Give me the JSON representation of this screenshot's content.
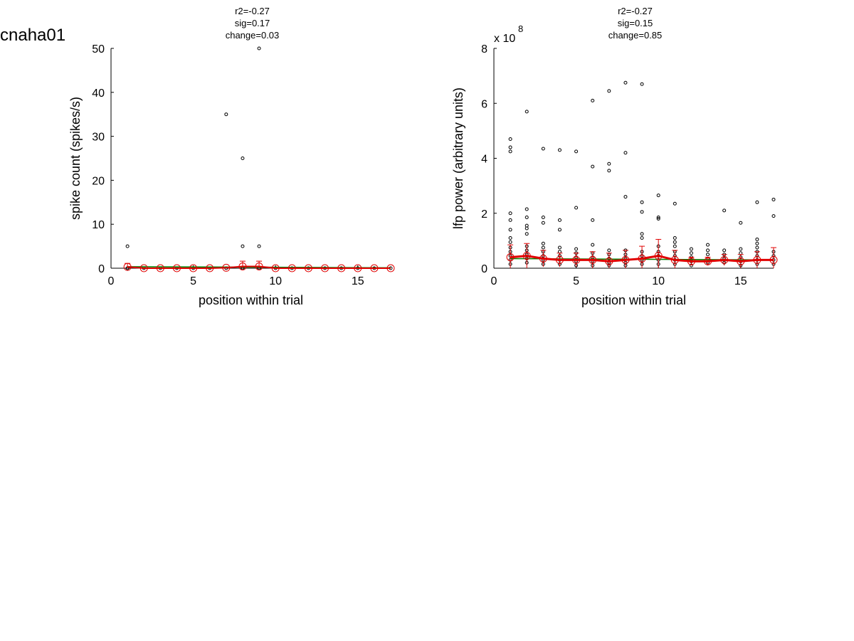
{
  "figure_title": "cnaha01",
  "chart_data": [
    {
      "type": "scatter",
      "stats": [
        "r2=-0.27",
        "sig=0.17",
        "change=0.03"
      ],
      "xlabel": "position within trial",
      "ylabel": "spike count (spikes/s)",
      "xlim": [
        0,
        17
      ],
      "ylim": [
        0,
        50
      ],
      "xticks": [
        "0",
        "5",
        "10",
        "15"
      ],
      "yticks": [
        "0",
        "10",
        "20",
        "30",
        "40",
        "50"
      ],
      "exponent_label": "",
      "exponent_power": "",
      "grid": false,
      "colors": {
        "points": "#000000",
        "fit": "#e00000",
        "trend": "#008000",
        "errbar": "#e00000"
      },
      "points": [
        [
          1,
          0
        ],
        [
          1,
          0
        ],
        [
          1,
          5
        ],
        [
          2,
          0
        ],
        [
          3,
          0
        ],
        [
          4,
          0
        ],
        [
          5,
          0
        ],
        [
          6,
          0
        ],
        [
          7,
          0
        ],
        [
          7,
          35
        ],
        [
          8,
          0
        ],
        [
          8,
          0
        ],
        [
          8,
          5
        ],
        [
          8,
          25
        ],
        [
          9,
          0
        ],
        [
          9,
          0
        ],
        [
          9,
          5
        ],
        [
          9,
          50
        ],
        [
          10,
          0
        ],
        [
          11,
          0
        ],
        [
          12,
          0
        ],
        [
          13,
          0
        ],
        [
          14,
          0
        ],
        [
          15,
          0
        ],
        [
          16,
          0
        ],
        [
          17,
          0
        ]
      ],
      "mean": {
        "x": [
          1,
          2,
          3,
          4,
          5,
          6,
          7,
          8,
          9,
          10,
          11,
          12,
          13,
          14,
          15,
          16,
          17
        ],
        "y": [
          0.3,
          0,
          0,
          0,
          0,
          0,
          0.1,
          0.4,
          0.4,
          0,
          0,
          0,
          0,
          0,
          0,
          0,
          0
        ],
        "err": [
          0.8,
          0,
          0,
          0,
          0,
          0,
          0,
          1.2,
          1.2,
          0,
          0,
          0,
          0,
          0,
          0,
          0,
          0
        ]
      },
      "fit_line": {
        "x": [
          1,
          17
        ],
        "y": [
          0.35,
          0.1
        ]
      }
    },
    {
      "type": "scatter",
      "stats": [
        "r2=-0.27",
        "sig=0.15",
        "change=0.85"
      ],
      "xlabel": "position within trial",
      "ylabel": "lfp power (arbitrary units)",
      "xlim": [
        0,
        17
      ],
      "ylim": [
        0,
        8
      ],
      "xticks": [
        "0",
        "5",
        "10",
        "15"
      ],
      "yticks": [
        "0",
        "2",
        "4",
        "6",
        "8"
      ],
      "exponent_label": "x 10",
      "exponent_power": "8",
      "grid": false,
      "colors": {
        "points": "#000000",
        "fit": "#e00000",
        "trend": "#008000",
        "errbar": "#e00000"
      },
      "points": [
        [
          1,
          4.7
        ],
        [
          1,
          4.4
        ],
        [
          1,
          4.25
        ],
        [
          1,
          2.0
        ],
        [
          1,
          1.75
        ],
        [
          1,
          1.4
        ],
        [
          1,
          1.1
        ],
        [
          1,
          0.95
        ],
        [
          1,
          0.75
        ],
        [
          1,
          0.6
        ],
        [
          1,
          0.45
        ],
        [
          1,
          0.3
        ],
        [
          1,
          0.15
        ],
        [
          2,
          5.7
        ],
        [
          2,
          2.15
        ],
        [
          2,
          1.85
        ],
        [
          2,
          1.55
        ],
        [
          2,
          1.45
        ],
        [
          2,
          1.25
        ],
        [
          2,
          0.8
        ],
        [
          2,
          0.65
        ],
        [
          2,
          0.5
        ],
        [
          2,
          0.35
        ],
        [
          2,
          0.2
        ],
        [
          3,
          4.35
        ],
        [
          3,
          1.85
        ],
        [
          3,
          1.65
        ],
        [
          3,
          0.9
        ],
        [
          3,
          0.75
        ],
        [
          3,
          0.6
        ],
        [
          3,
          0.45
        ],
        [
          3,
          0.3
        ],
        [
          3,
          0.15
        ],
        [
          4,
          4.3
        ],
        [
          4,
          1.75
        ],
        [
          4,
          1.4
        ],
        [
          4,
          0.75
        ],
        [
          4,
          0.6
        ],
        [
          4,
          0.45
        ],
        [
          4,
          0.3
        ],
        [
          4,
          0.15
        ],
        [
          5,
          4.25
        ],
        [
          5,
          2.2
        ],
        [
          5,
          0.7
        ],
        [
          5,
          0.55
        ],
        [
          5,
          0.4
        ],
        [
          5,
          0.25
        ],
        [
          5,
          0.1
        ],
        [
          6,
          6.1
        ],
        [
          6,
          3.7
        ],
        [
          6,
          1.75
        ],
        [
          6,
          0.85
        ],
        [
          6,
          0.55
        ],
        [
          6,
          0.4
        ],
        [
          6,
          0.25
        ],
        [
          6,
          0.1
        ],
        [
          7,
          6.45
        ],
        [
          7,
          3.8
        ],
        [
          7,
          3.55
        ],
        [
          7,
          0.65
        ],
        [
          7,
          0.5
        ],
        [
          7,
          0.35
        ],
        [
          7,
          0.2
        ],
        [
          7,
          0.1
        ],
        [
          8,
          6.75
        ],
        [
          8,
          4.2
        ],
        [
          8,
          2.6
        ],
        [
          8,
          0.65
        ],
        [
          8,
          0.5
        ],
        [
          8,
          0.35
        ],
        [
          8,
          0.2
        ],
        [
          8,
          0.1
        ],
        [
          9,
          6.7
        ],
        [
          9,
          2.4
        ],
        [
          9,
          2.05
        ],
        [
          9,
          1.25
        ],
        [
          9,
          1.1
        ],
        [
          9,
          0.6
        ],
        [
          9,
          0.45
        ],
        [
          9,
          0.3
        ],
        [
          9,
          0.15
        ],
        [
          10,
          2.65
        ],
        [
          10,
          1.85
        ],
        [
          10,
          1.8
        ],
        [
          10,
          0.8
        ],
        [
          10,
          0.6
        ],
        [
          10,
          0.45
        ],
        [
          10,
          0.3
        ],
        [
          10,
          0.15
        ],
        [
          11,
          2.35
        ],
        [
          11,
          1.1
        ],
        [
          11,
          0.95
        ],
        [
          11,
          0.8
        ],
        [
          11,
          0.6
        ],
        [
          11,
          0.45
        ],
        [
          11,
          0.3
        ],
        [
          11,
          0.15
        ],
        [
          12,
          0.7
        ],
        [
          12,
          0.55
        ],
        [
          12,
          0.4
        ],
        [
          12,
          0.25
        ],
        [
          12,
          0.1
        ],
        [
          13,
          0.85
        ],
        [
          13,
          0.65
        ],
        [
          13,
          0.5
        ],
        [
          13,
          0.35
        ],
        [
          13,
          0.2
        ],
        [
          14,
          2.1
        ],
        [
          14,
          0.65
        ],
        [
          14,
          0.5
        ],
        [
          14,
          0.35
        ],
        [
          14,
          0.2
        ],
        [
          15,
          1.65
        ],
        [
          15,
          0.7
        ],
        [
          15,
          0.55
        ],
        [
          15,
          0.4
        ],
        [
          15,
          0.25
        ],
        [
          15,
          0.1
        ],
        [
          16,
          2.4
        ],
        [
          16,
          1.05
        ],
        [
          16,
          0.9
        ],
        [
          16,
          0.75
        ],
        [
          16,
          0.6
        ],
        [
          16,
          0.45
        ],
        [
          16,
          0.3
        ],
        [
          16,
          0.15
        ],
        [
          17,
          2.5
        ],
        [
          17,
          1.9
        ],
        [
          17,
          0.6
        ],
        [
          17,
          0.45
        ],
        [
          17,
          0.3
        ],
        [
          17,
          0.15
        ]
      ],
      "mean": {
        "x": [
          1,
          2,
          3,
          4,
          5,
          6,
          7,
          8,
          9,
          10,
          11,
          12,
          13,
          14,
          15,
          16,
          17
        ],
        "y": [
          0.4,
          0.45,
          0.35,
          0.3,
          0.3,
          0.3,
          0.25,
          0.3,
          0.35,
          0.45,
          0.3,
          0.25,
          0.25,
          0.3,
          0.25,
          0.3,
          0.3
        ],
        "err": [
          0.45,
          0.45,
          0.3,
          0.25,
          0.25,
          0.3,
          0.3,
          0.35,
          0.45,
          0.6,
          0.35,
          0.15,
          0.15,
          0.2,
          0.25,
          0.3,
          0.45
        ]
      },
      "fit_line": {
        "x": [
          1,
          17
        ],
        "y": [
          0.35,
          0.3
        ]
      }
    }
  ]
}
